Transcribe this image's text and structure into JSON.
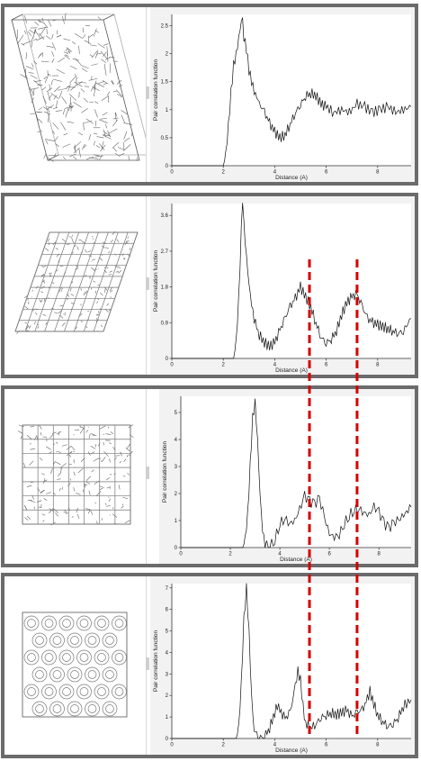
{
  "figure": {
    "guide_color": "#d40000",
    "frame_color": "#6b6b6b"
  },
  "panels": [
    {
      "structure": {
        "icon": "amorphous-structure-icon"
      },
      "chart_ref": 0
    },
    {
      "structure": {
        "icon": "lattice-structure-icon"
      },
      "chart_ref": 1
    },
    {
      "structure": {
        "icon": "cubic-lattice-structure-icon"
      },
      "chart_ref": 2
    },
    {
      "structure": {
        "icon": "porous-cage-structure-icon"
      },
      "chart_ref": 3
    }
  ],
  "guides": {
    "distances": [
      5.35,
      7.2
    ]
  },
  "chart_data": [
    {
      "type": "line",
      "xlabel": "Distance (A)",
      "ylabel": "Pair correlation function",
      "xlim": [
        0,
        9.3
      ],
      "ylim": [
        0,
        2.7
      ],
      "xticks": [
        0,
        2,
        4,
        6,
        8
      ],
      "yticks": [
        0,
        0.5,
        1,
        1.5,
        2,
        2.5
      ],
      "x": [
        0,
        2.0,
        2.1,
        2.2,
        2.3,
        2.4,
        2.5,
        2.6,
        2.7,
        2.75,
        2.8,
        2.9,
        3.0,
        3.1,
        3.2,
        3.3,
        3.4,
        3.6,
        3.8,
        4.0,
        4.2,
        4.4,
        4.6,
        4.8,
        5.0,
        5.2,
        5.4,
        5.6,
        5.8,
        6.0,
        6.3,
        6.6,
        6.9,
        7.2,
        7.5,
        7.8,
        8.1,
        8.4,
        8.7,
        9.0,
        9.3
      ],
      "y": [
        0,
        0,
        0.2,
        0.7,
        1.3,
        1.8,
        2.0,
        2.3,
        2.6,
        2.7,
        2.3,
        2.1,
        1.7,
        1.5,
        1.3,
        1.2,
        1.1,
        0.95,
        0.75,
        0.6,
        0.5,
        0.55,
        0.75,
        0.95,
        1.1,
        1.25,
        1.3,
        1.25,
        1.1,
        1.05,
        0.95,
        1.0,
        0.95,
        1.1,
        1.05,
        0.95,
        1.0,
        1.05,
        0.95,
        1.0,
        1.05
      ]
    },
    {
      "type": "line",
      "xlabel": "Distance (A)",
      "ylabel": "Pair correlation function",
      "xlim": [
        0,
        9.3
      ],
      "ylim": [
        0,
        3.9
      ],
      "xticks": [
        0,
        2,
        4,
        6,
        8
      ],
      "yticks": [
        0,
        0.9,
        1.8,
        2.7,
        3.6
      ],
      "x": [
        0,
        2.4,
        2.5,
        2.6,
        2.7,
        2.75,
        2.8,
        2.9,
        3.0,
        3.1,
        3.2,
        3.4,
        3.6,
        3.8,
        4.0,
        4.2,
        4.4,
        4.6,
        4.8,
        5.0,
        5.2,
        5.4,
        5.6,
        5.8,
        6.0,
        6.2,
        6.4,
        6.6,
        6.8,
        7.0,
        7.2,
        7.4,
        7.6,
        7.8,
        8.0,
        8.2,
        8.4,
        8.6,
        8.8,
        9.0,
        9.3
      ],
      "y": [
        0,
        0,
        0.4,
        1.5,
        3.2,
        3.8,
        3.4,
        2.6,
        1.9,
        1.4,
        1.0,
        0.6,
        0.4,
        0.3,
        0.4,
        0.7,
        1.0,
        1.3,
        1.5,
        1.8,
        1.55,
        1.3,
        0.9,
        0.55,
        0.4,
        0.5,
        0.7,
        1.1,
        1.4,
        1.55,
        1.6,
        1.3,
        1.0,
        0.9,
        0.85,
        0.8,
        0.75,
        0.7,
        0.65,
        0.7,
        1.0
      ]
    },
    {
      "type": "line",
      "xlabel": "Distance (A)",
      "ylabel": "Pair correlation function",
      "xlim": [
        0,
        9.3
      ],
      "ylim": [
        0,
        5.6
      ],
      "xticks": [
        0,
        2,
        4,
        6,
        8
      ],
      "yticks": [
        0,
        1,
        2,
        3,
        4,
        5
      ],
      "x": [
        0,
        2.5,
        2.6,
        2.7,
        2.8,
        2.9,
        3.0,
        3.1,
        3.2,
        3.3,
        3.4,
        3.6,
        3.8,
        4.0,
        4.2,
        4.4,
        4.6,
        4.8,
        5.0,
        5.2,
        5.4,
        5.6,
        5.8,
        6.0,
        6.2,
        6.4,
        6.6,
        6.8,
        7.0,
        7.2,
        7.4,
        7.6,
        7.8,
        8.0,
        8.2,
        8.4,
        8.6,
        8.8,
        9.0,
        9.3
      ],
      "y": [
        0,
        0,
        0.3,
        1.2,
        3.0,
        4.8,
        5.4,
        4.0,
        2.0,
        0.7,
        0.15,
        0.05,
        0.3,
        0.9,
        1.1,
        0.9,
        1.0,
        1.4,
        1.9,
        1.7,
        1.6,
        1.8,
        1.1,
        0.5,
        0.4,
        0.5,
        0.9,
        1.2,
        1.4,
        1.45,
        1.3,
        1.2,
        1.5,
        1.3,
        0.9,
        0.7,
        0.9,
        1.0,
        1.2,
        1.5
      ]
    },
    {
      "type": "line",
      "xlabel": "Distance (A)",
      "ylabel": "Pair correlation function",
      "xlim": [
        0,
        9.3
      ],
      "ylim": [
        0,
        7.2
      ],
      "xticks": [
        0,
        2,
        4,
        6,
        8
      ],
      "yticks": [
        0,
        1,
        2,
        3,
        4,
        5,
        6,
        7
      ],
      "x": [
        0,
        2.5,
        2.6,
        2.7,
        2.8,
        2.9,
        3.0,
        3.1,
        3.2,
        3.4,
        3.6,
        3.8,
        4.0,
        4.1,
        4.2,
        4.4,
        4.6,
        4.8,
        4.9,
        5.0,
        5.1,
        5.2,
        5.4,
        5.6,
        5.8,
        6.0,
        6.2,
        6.4,
        6.6,
        6.8,
        7.0,
        7.2,
        7.4,
        7.6,
        7.7,
        7.8,
        8.0,
        8.2,
        8.4,
        8.6,
        8.8,
        9.0,
        9.3
      ],
      "y": [
        0,
        0,
        0.5,
        2.5,
        5.5,
        7.0,
        5.0,
        2.0,
        0.4,
        0.05,
        0.1,
        0.5,
        1.2,
        1.5,
        1.3,
        0.9,
        1.2,
        2.4,
        3.1,
        2.7,
        1.5,
        0.7,
        0.5,
        0.7,
        1.0,
        1.1,
        1.2,
        1.1,
        1.2,
        1.3,
        1.0,
        1.2,
        1.3,
        1.8,
        2.2,
        1.8,
        1.1,
        0.8,
        0.6,
        0.7,
        1.0,
        1.5,
        1.8
      ]
    }
  ]
}
